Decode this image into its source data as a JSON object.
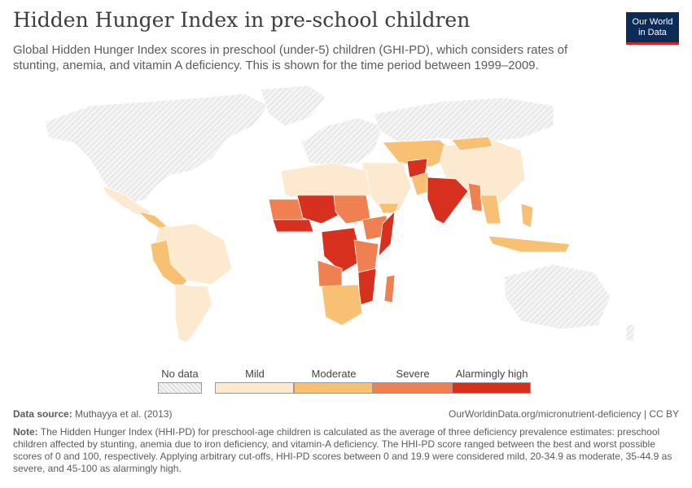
{
  "header": {
    "title": "Hidden Hunger Index in pre-school children",
    "subtitle": "Global Hidden Hunger Index scores in preschool (under-5) children (GHI-PD), which considers rates of stunting, anemia, and vitamin A deficiency. This is shown for the time period between 1999–2009."
  },
  "logo": {
    "line1": "Our World",
    "line2": "in Data",
    "bg_color": "#0c2b56",
    "accent_color": "#ce261e"
  },
  "legend": {
    "no_data": "No data",
    "categories": [
      {
        "label": "Mild",
        "color": "#fde9cf"
      },
      {
        "label": "Moderate",
        "color": "#f8c073"
      },
      {
        "label": "Severe",
        "color": "#ef8052"
      },
      {
        "label": "Alarmingly high",
        "color": "#d7301f"
      }
    ]
  },
  "map_colors": {
    "no_data": "#eeeeee",
    "border": "#ffffff",
    "mild": "#fde9cf",
    "moderate": "#f8c073",
    "severe": "#ef8052",
    "alarming": "#d7301f"
  },
  "footer": {
    "source_label": "Data source:",
    "source_text": "Muthayya et al. (2013)",
    "url_text": "OurWorldinData.org/micronutrient-deficiency | CC BY",
    "note_label": "Note:",
    "note_text": "The Hidden Hunger Index (HHI-PD) for preschool-age children is calculated as the average of three deficiency prevalence estimates: preschool children affected by stunting, anemia due to iron deficiency, and vitamin-A deficiency. The HHI-PD score ranged between the best and worst possible scores of 0 and 100, respectively. Applying arbitrary cut-offs, HHI-PD scores between 0 and 19.9 were considered mild, 20-34.9 as moderate, 35-44.9 as severe, and 45-100 as alarmingly high."
  }
}
